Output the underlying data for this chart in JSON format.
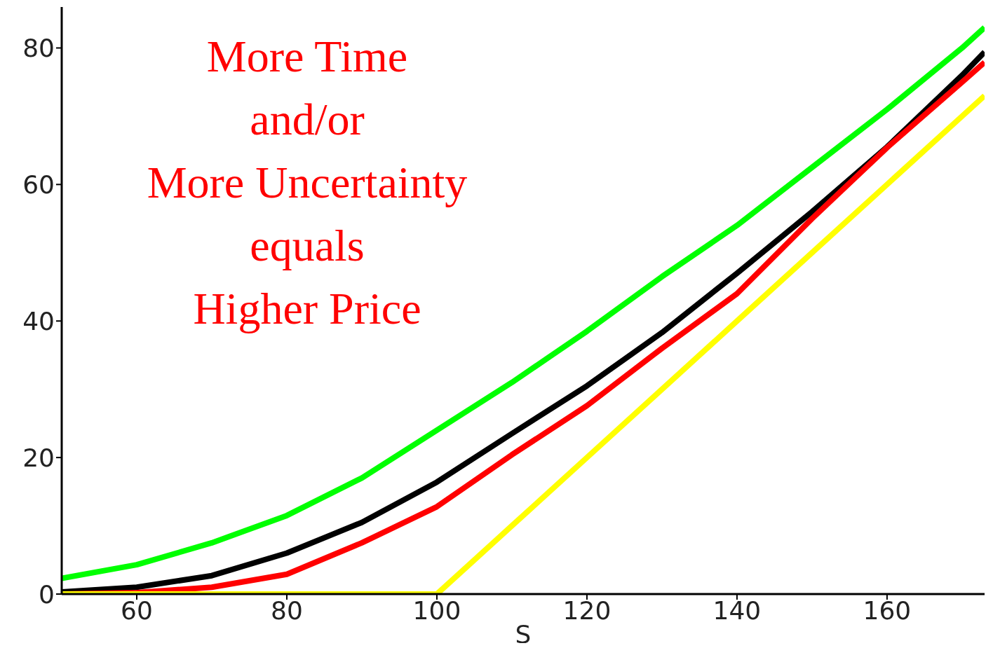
{
  "chart_data": {
    "type": "line",
    "xlabel": "S",
    "annotations": [
      "More Time\nand/or\nMore Uncertainty\nequals\nHigher Price"
    ],
    "x": [
      50,
      60,
      70,
      80,
      90,
      100,
      110,
      120,
      130,
      140,
      150,
      160,
      170,
      173
    ],
    "series": [
      {
        "color": "#00ff00",
        "values": [
          2.3,
          4.3,
          7.5,
          11.5,
          17,
          24,
          31,
          38.5,
          46.5,
          54,
          62.5,
          71,
          80,
          83
        ]
      },
      {
        "color": "#000000",
        "values": [
          0.3,
          1,
          2.7,
          6,
          10.5,
          16.4,
          23.5,
          30.5,
          38.3,
          47,
          56,
          65.5,
          76,
          79.4
        ]
      },
      {
        "color": "#ff0000",
        "values": [
          0,
          0.2,
          1,
          2.9,
          7.5,
          12.8,
          20.4,
          27.6,
          36,
          44,
          55,
          65.4,
          75,
          77.9
        ]
      },
      {
        "color": "#ffff00",
        "values": [
          0,
          0,
          0,
          0,
          0,
          0,
          10,
          20,
          30,
          40,
          50,
          60,
          70,
          73
        ]
      }
    ],
    "xlim": [
      50,
      173
    ],
    "xticks": [
      60,
      80,
      100,
      120,
      140,
      160
    ],
    "ylim": [
      0,
      86
    ],
    "yticks": [
      0,
      20,
      40,
      60,
      80
    ],
    "grid": false,
    "legend": false,
    "marker": "none",
    "line_style": "solid"
  }
}
